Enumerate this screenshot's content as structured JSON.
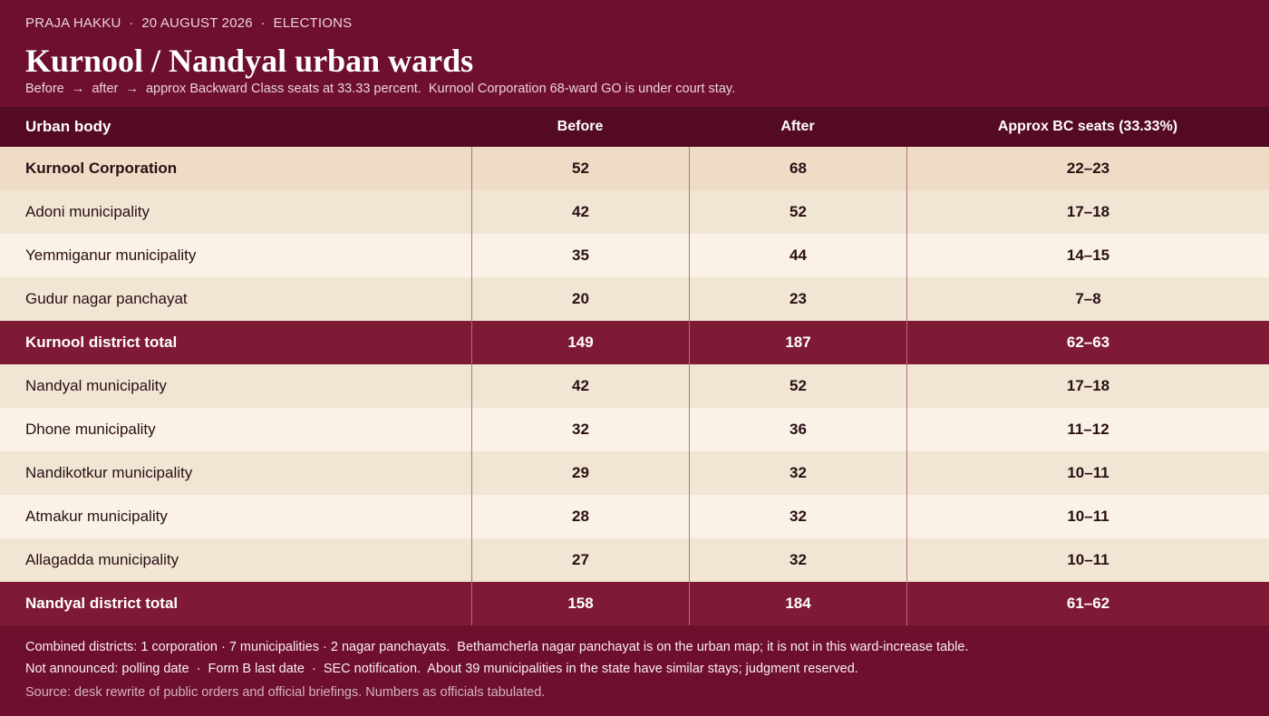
{
  "header": {
    "kicker": "PRAJA HAKKU  ·  20 AUGUST 2026  ·  ELECTIONS",
    "title": "Kurnool / Nandyal urban wards",
    "subtitle": "Before  →  after  →  approx Backward Class seats at 33.33 percent.  Kurnool Corporation 68-ward GO is under court stay."
  },
  "table": {
    "columns": [
      "Urban body",
      "Before",
      "After",
      "Approx BC seats (33.33%)"
    ],
    "rows": [
      [
        "Kurnool Corporation",
        52,
        68,
        "22–23"
      ],
      [
        "Adoni municipality",
        42,
        52,
        "17–18"
      ],
      [
        "Yemmiganur municipality",
        35,
        44,
        "14–15"
      ],
      [
        "Gudur nagar panchayat",
        20,
        23,
        "7–8"
      ],
      [
        "Kurnool district total",
        149,
        187,
        "62–63"
      ],
      [
        "Nandyal municipality",
        42,
        52,
        "17–18"
      ],
      [
        "Dhone municipality",
        32,
        36,
        "11–12"
      ],
      [
        "Nandikotkur municipality",
        29,
        32,
        "10–11"
      ],
      [
        "Atmakur municipality",
        28,
        32,
        "10–11"
      ],
      [
        "Allagadda municipality",
        27,
        32,
        "10–11"
      ],
      [
        "Nandyal district total",
        158,
        184,
        "61–62"
      ]
    ]
  },
  "footer": {
    "notes": [
      "Combined districts: 1 corporation · 7 municipalities · 2 nagar panchayats.  Bethamcherla nagar panchayat is on the urban map; it is not in this ward-increase table.",
      "Not announced: polling date  ·  Form B last date  ·  SEC notification.  About 39 municipalities in the state have similar stays; judgment reserved."
    ],
    "source": "Source: desk rewrite of public orders and official briefings. Numbers as officials tabulated."
  }
}
